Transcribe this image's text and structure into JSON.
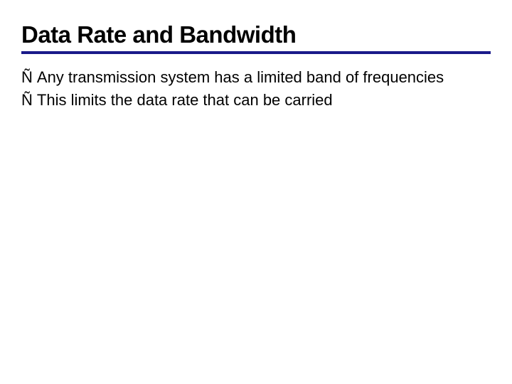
{
  "slide": {
    "title": "Data Rate and Bandwidth",
    "title_fontsize": 33,
    "title_color": "#000000",
    "underline_color": "#1a1a8a",
    "underline_width": 4,
    "background_color": "#ffffff",
    "bullet_marker": "Ñ",
    "bullet_fontsize": 22,
    "bullet_color": "#000000",
    "bullets": [
      "Any transmission system has a limited band of frequencies",
      "This limits the data rate that can be carried"
    ]
  }
}
